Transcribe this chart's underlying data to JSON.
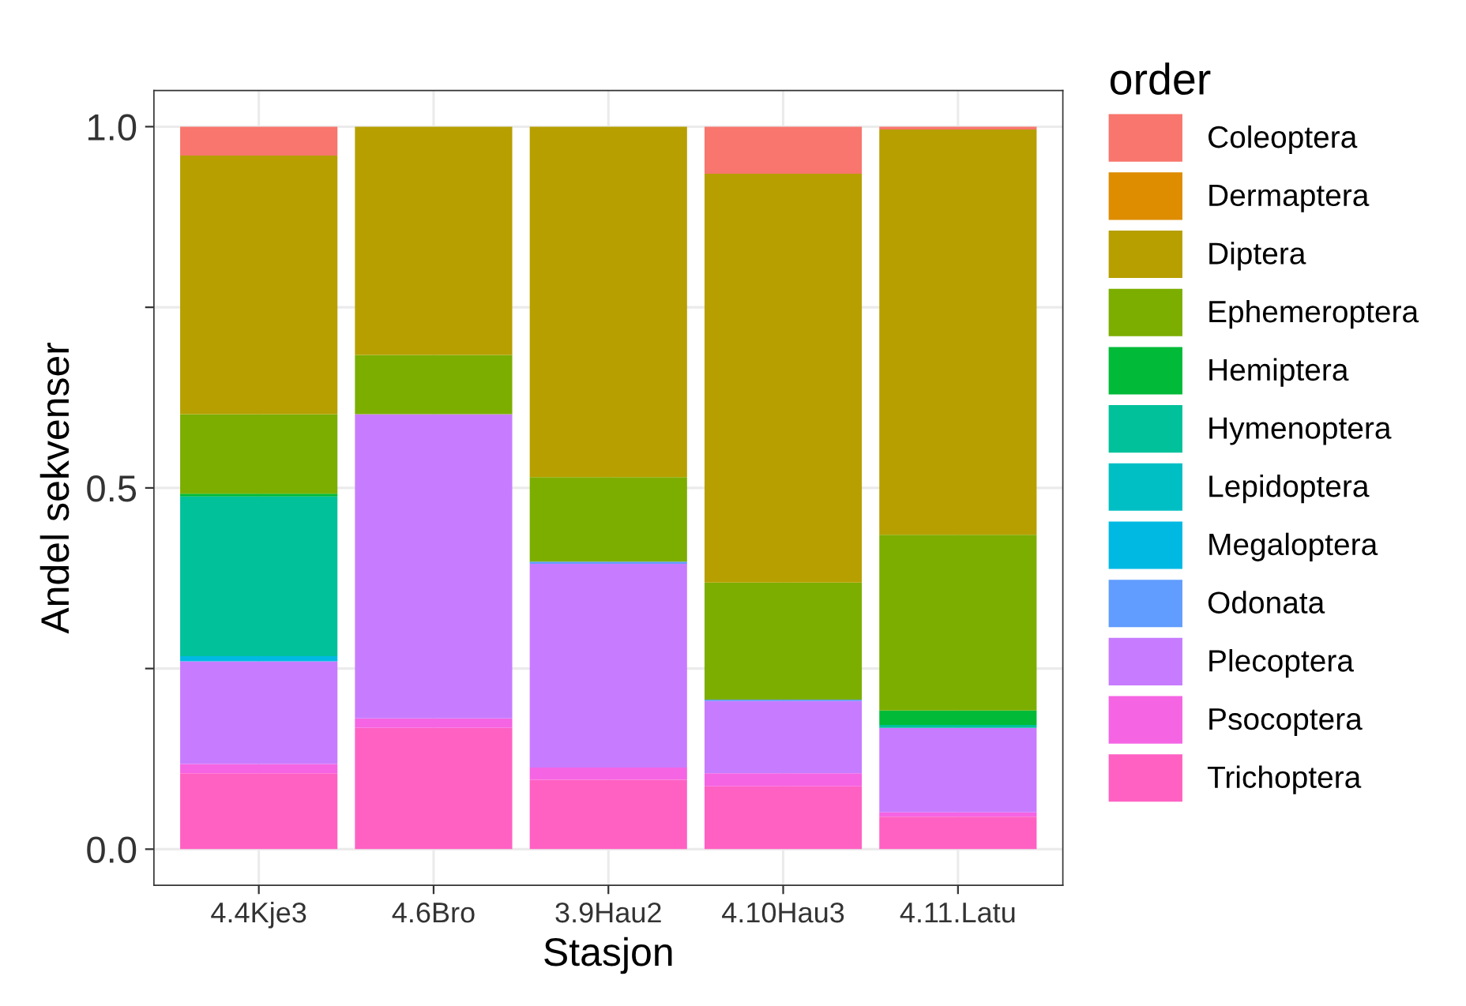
{
  "chart_data": {
    "type": "bar",
    "stacked": true,
    "xlabel": "Stasjon",
    "ylabel": "Andel sekvenser",
    "legend_title": "order",
    "legend": "right",
    "grid": true,
    "categories": [
      "4.4Kje3",
      "4.6Bro",
      "3.9Hau2",
      "4.10Hau3",
      "4.11.Latu"
    ],
    "ylim": [
      -0.05,
      1.05
    ],
    "yticks": [
      {
        "value": 0,
        "label": "0.0"
      },
      {
        "value": 0.25,
        "label": null
      },
      {
        "value": 0.5,
        "label": "0.5"
      },
      {
        "value": 0.75,
        "label": null
      },
      {
        "value": 1,
        "label": "1.0"
      }
    ],
    "series": [
      {
        "name": "Trichoptera",
        "color": "#ff61c3",
        "values": [
          0.105,
          0.168,
          0.096,
          0.087,
          0.045
        ]
      },
      {
        "name": "Psocoptera",
        "color": "#f564e3",
        "values": [
          0.013,
          0.013,
          0.017,
          0.018,
          0.006
        ]
      },
      {
        "name": "Plecoptera",
        "color": "#c77cff",
        "values": [
          0.142,
          0.421,
          0.282,
          0.1,
          0.117
        ]
      },
      {
        "name": "Odonata",
        "color": "#619cff",
        "values": [
          0,
          0,
          0.003,
          0.002,
          0
        ]
      },
      {
        "name": "Megaloptera",
        "color": "#00b9e3",
        "values": [
          0.007,
          0,
          0,
          0,
          0
        ]
      },
      {
        "name": "Lepidoptera",
        "color": "#00bfc4",
        "values": [
          0,
          0,
          0,
          0,
          0
        ]
      },
      {
        "name": "Hymenoptera",
        "color": "#00c19a",
        "values": [
          0.221,
          0,
          0,
          0,
          0.004
        ]
      },
      {
        "name": "Hemiptera",
        "color": "#00ba38",
        "values": [
          0.004,
          0,
          0,
          0,
          0.02
        ]
      },
      {
        "name": "Ephemeroptera",
        "color": "#7cae00",
        "values": [
          0.11,
          0.082,
          0.117,
          0.162,
          0.243
        ]
      },
      {
        "name": "Diptera",
        "color": "#b79f00",
        "values": [
          0.358,
          0.316,
          0.485,
          0.566,
          0.561
        ]
      },
      {
        "name": "Dermaptera",
        "color": "#de8c00",
        "values": [
          0,
          0,
          0,
          0,
          0
        ]
      },
      {
        "name": "Coleoptera",
        "color": "#f8766d",
        "values": [
          0.04,
          0,
          0,
          0.065,
          0.004
        ]
      }
    ]
  }
}
